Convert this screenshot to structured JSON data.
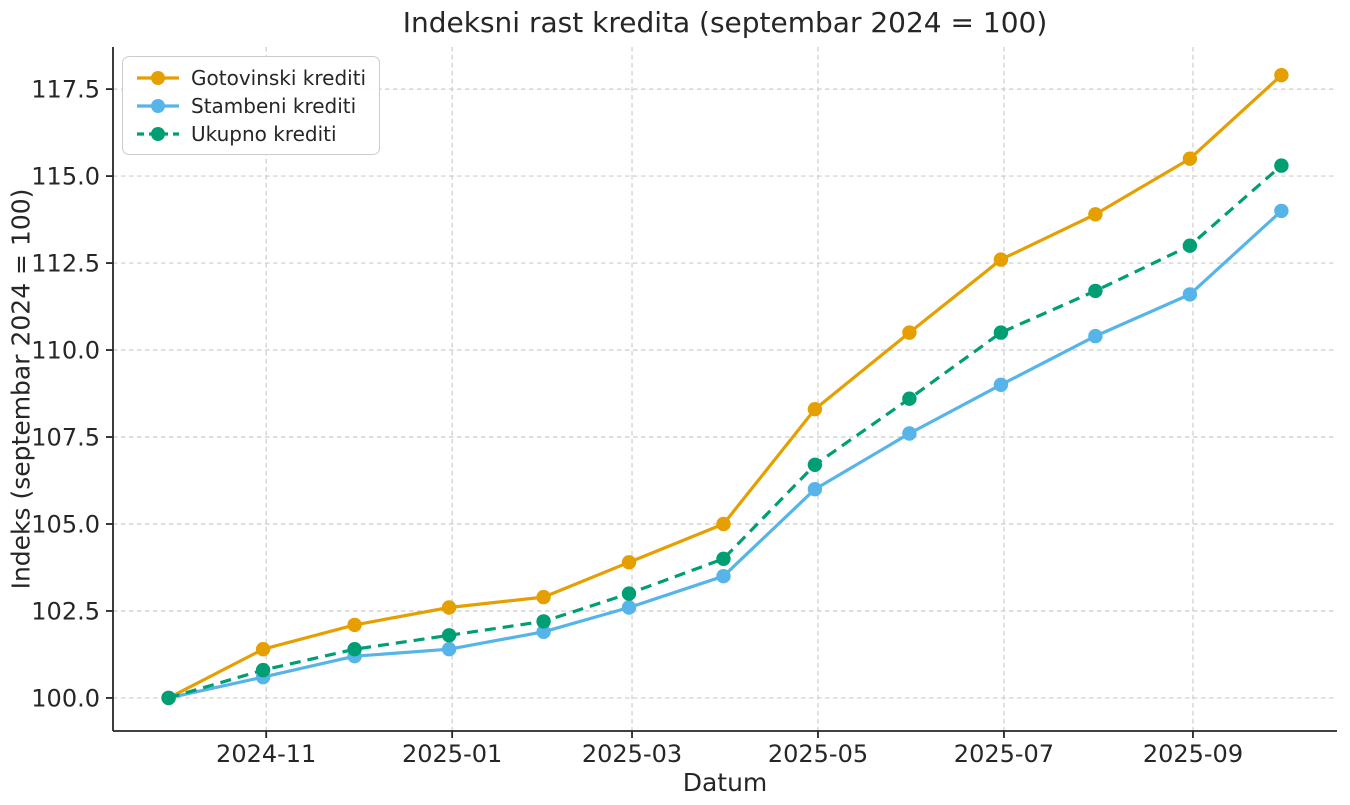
{
  "chart_data": {
    "type": "line",
    "title": "Indeksni rast kredita (septembar 2024 = 100)",
    "xlabel": "Datum",
    "ylabel": "Indeks (septembar 2024 = 100)",
    "x_dates": [
      "2024-09-30",
      "2024-10-31",
      "2024-11-30",
      "2024-12-31",
      "2025-01-31",
      "2025-02-28",
      "2025-03-31",
      "2025-04-30",
      "2025-05-31",
      "2025-06-30",
      "2025-07-31",
      "2025-08-31",
      "2025-09-30"
    ],
    "x_days": [
      0,
      31,
      61,
      92,
      123,
      151,
      182,
      212,
      243,
      273,
      304,
      335,
      365
    ],
    "series": [
      {
        "name": "Gotovinski krediti",
        "color": "#E69F00",
        "style": "solid",
        "values": [
          100.0,
          101.4,
          102.1,
          102.6,
          102.9,
          103.9,
          105.0,
          108.3,
          110.5,
          112.6,
          113.9,
          115.5,
          117.9
        ]
      },
      {
        "name": "Stambeni krediti",
        "color": "#56B4E9",
        "style": "solid",
        "values": [
          100.0,
          100.6,
          101.2,
          101.4,
          101.9,
          102.6,
          103.5,
          106.0,
          107.6,
          109.0,
          110.4,
          111.6,
          114.0
        ]
      },
      {
        "name": "Ukupno krediti",
        "color": "#009E73",
        "style": "dashed",
        "values": [
          100.0,
          100.8,
          101.4,
          101.8,
          102.2,
          103.0,
          104.0,
          106.7,
          108.6,
          110.5,
          111.7,
          113.0,
          115.3
        ]
      }
    ],
    "x_tick_labels": [
      "2024-11",
      "2025-01",
      "2025-03",
      "2025-05",
      "2025-07",
      "2025-09"
    ],
    "x_tick_days": [
      32,
      93,
      152,
      213,
      274,
      336
    ],
    "y_tick_labels": [
      "100.0",
      "102.5",
      "105.0",
      "107.5",
      "110.0",
      "112.5",
      "115.0",
      "117.5"
    ],
    "y_ticks": [
      100.0,
      102.5,
      105.0,
      107.5,
      110.0,
      112.5,
      115.0,
      117.5
    ],
    "xlim_days": [
      -18.25,
      383.25
    ],
    "ylim": [
      99.05,
      118.71
    ],
    "grid": true,
    "legend_position": "upper left",
    "colors": {
      "text": "#262626",
      "grid": "#cccccc",
      "spine": "#262626",
      "legend_border": "#cccccc",
      "background": "#ffffff"
    }
  }
}
